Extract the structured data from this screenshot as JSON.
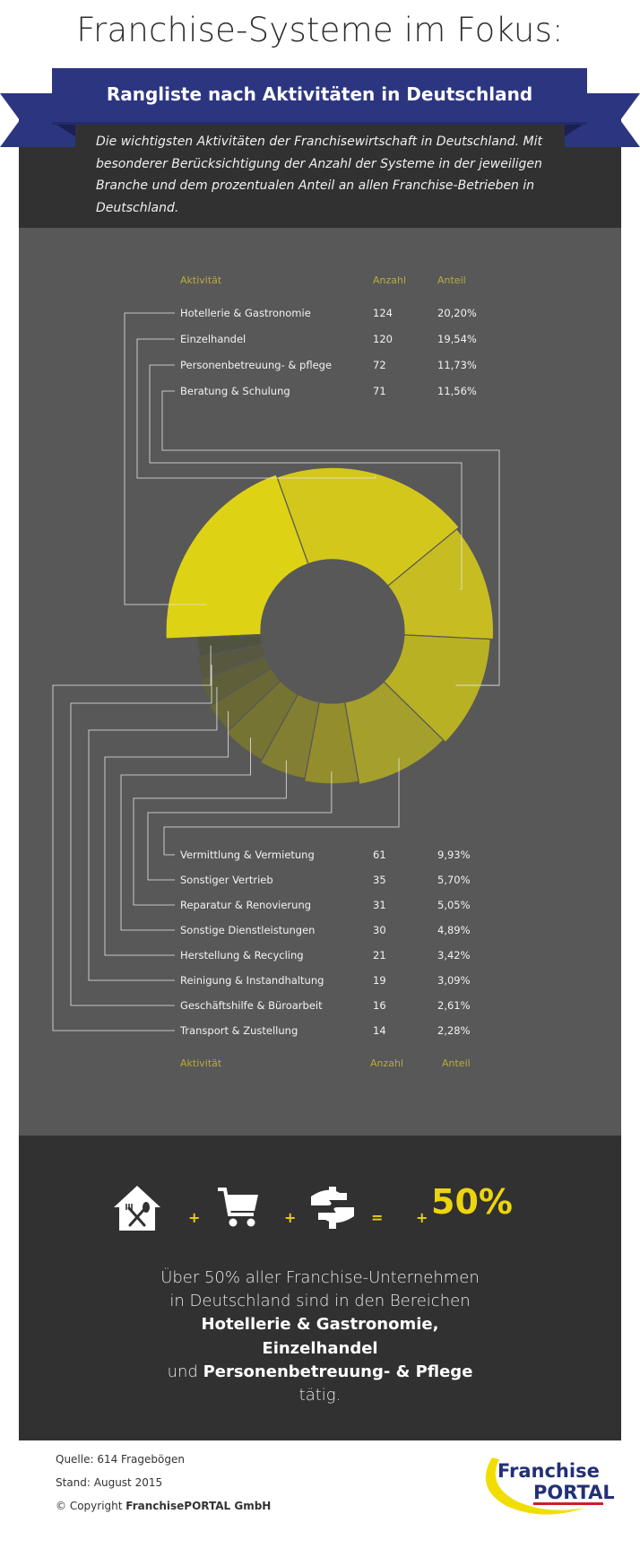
{
  "title": "Franchise-Systeme im Fokus:",
  "banner": "Rangliste nach Aktivitäten in Deutschland",
  "intro": "Die wichtigsten Aktivitäten der Franchisewirtschaft in Deutschland. Mit besonderer Berücksichtigung der Anzahl der Systeme in der jeweiligen Branche und dem prozentualen Anteil an allen Franchise-Betrieben in Deutschland.",
  "headers": {
    "activity": "Aktivität",
    "count": "Anzahl",
    "share": "Anteil"
  },
  "chart_data": {
    "type": "pie",
    "title": "Rangliste nach Aktivitäten in Deutschland",
    "categories": [
      "Hotellerie & Gastronomie",
      "Einzelhandel",
      "Personenbetreuung- & pflege",
      "Beratung & Schulung",
      "Vermittlung & Vermietung",
      "Sonstiger Vertrieb",
      "Reparatur & Renovierung",
      "Sonstige Dienstleistungen",
      "Herstellung & Recycling",
      "Reinigung & Instandhaltung",
      "Geschäftshilfe & Büroarbeit",
      "Transport & Zustellung"
    ],
    "counts": [
      124,
      120,
      72,
      71,
      61,
      35,
      31,
      30,
      21,
      19,
      16,
      14
    ],
    "shares": [
      "20,20%",
      "19,54%",
      "11,73%",
      "11,56%",
      "9,93%",
      "5,70%",
      "5,05%",
      "4,89%",
      "3,42%",
      "3,09%",
      "2,61%",
      "2,28%"
    ],
    "values": [
      20.2,
      19.54,
      11.73,
      11.56,
      9.93,
      5.7,
      5.05,
      4.89,
      3.42,
      3.09,
      2.61,
      2.28
    ],
    "colors": [
      "#ded215",
      "#d3c71b",
      "#c7bd22",
      "#b9b124",
      "#a59f2c",
      "#938d2b",
      "#837f32",
      "#767433",
      "#6a6936",
      "#5f5f3a",
      "#57583f",
      "#515341"
    ]
  },
  "summary": {
    "line1": "Über 50% aller Franchise-Unternehmen",
    "line2": "in Deutschland sind in den Bereichen",
    "bold1": "Hotellerie & Gastronomie,",
    "bold2": "Einzelhandel",
    "und": "und",
    "bold3": "Personenbetreuung- & Pflege",
    "line_end": "tätig.",
    "big": "50%",
    "plus": "+",
    "equals": "=",
    "icons": [
      "house-restaurant-icon",
      "shopping-cart-icon",
      "care-hands-icon"
    ]
  },
  "footer": {
    "source": "Quelle: 614 Fragebögen",
    "date": "Stand: August 2015",
    "copyright_prefix": "© Copyright ",
    "copyright_company": "FranchisePORTAL GmbH"
  },
  "logo": {
    "line1": "Franchise",
    "line2": "PORTAL"
  }
}
